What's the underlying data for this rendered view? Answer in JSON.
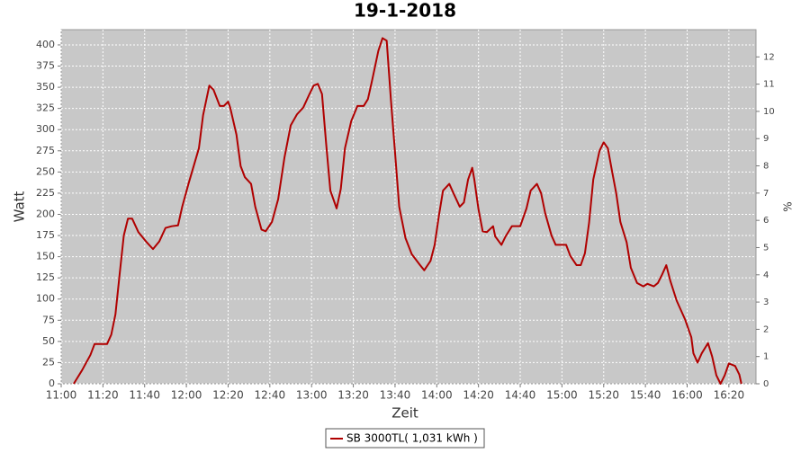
{
  "chart_data": {
    "type": "line",
    "title": "19-1-2018",
    "x_label": "Zeit",
    "y_label": "Watt",
    "y2_label": "%",
    "xlim": [
      "11:00",
      "16:33"
    ],
    "xticks": [
      "11:00",
      "11:20",
      "11:40",
      "12:00",
      "12:20",
      "12:40",
      "13:00",
      "13:20",
      "13:40",
      "14:00",
      "14:20",
      "14:40",
      "15:00",
      "15:20",
      "15:40",
      "16:00",
      "16:20"
    ],
    "ylim": [
      0,
      418
    ],
    "yticks": [
      0,
      25,
      50,
      75,
      100,
      125,
      150,
      175,
      200,
      225,
      250,
      275,
      300,
      325,
      350,
      375,
      400
    ],
    "y2lim": [
      0,
      13
    ],
    "y2ticks": [
      0,
      1,
      2,
      3,
      4,
      5,
      6,
      7,
      8,
      9,
      10,
      11,
      12
    ],
    "grid": true,
    "legend": "bottom",
    "x": [
      "11:06",
      "11:10",
      "11:14",
      "11:16",
      "11:19",
      "11:22",
      "11:24",
      "11:26",
      "11:28",
      "11:30",
      "11:32",
      "11:34",
      "11:37",
      "11:41",
      "11:44",
      "11:47",
      "11:50",
      "11:53",
      "11:56",
      "11:58",
      "12:01",
      "12:06",
      "12:08",
      "12:11",
      "12:13",
      "12:16",
      "12:18",
      "12:20",
      "12:21",
      "12:24",
      "12:26",
      "12:28",
      "12:31",
      "12:33",
      "12:36",
      "12:38",
      "12:41",
      "12:44",
      "12:47",
      "12:50",
      "12:53",
      "12:56",
      "12:59",
      "13:01",
      "13:03",
      "13:05",
      "13:07",
      "13:09",
      "13:12",
      "13:14",
      "13:16",
      "13:19",
      "13:22",
      "13:25",
      "13:27",
      "13:29",
      "13:32",
      "13:34",
      "13:36",
      "13:38",
      "13:40",
      "13:42",
      "13:45",
      "13:48",
      "13:52",
      "13:54",
      "13:57",
      "13:59",
      "14:01",
      "14:03",
      "14:06",
      "14:08",
      "14:11",
      "14:13",
      "14:15",
      "14:17",
      "14:18",
      "14:20",
      "14:22",
      "14:24",
      "14:27",
      "14:28",
      "14:31",
      "14:33",
      "14:36",
      "14:38",
      "14:40",
      "14:43",
      "14:45",
      "14:48",
      "14:50",
      "14:52",
      "14:55",
      "14:57",
      "14:59",
      "15:02",
      "15:04",
      "15:07",
      "15:09",
      "15:11",
      "15:13",
      "15:15",
      "15:18",
      "15:20",
      "15:22",
      "15:24",
      "15:26",
      "15:28",
      "15:31",
      "15:33",
      "15:36",
      "15:39",
      "15:41",
      "15:44",
      "15:46",
      "15:48",
      "15:50",
      "15:52",
      "15:55",
      "15:57",
      "15:59",
      "16:02",
      "16:03",
      "16:05",
      "16:07",
      "16:10",
      "16:12",
      "16:14",
      "16:16",
      "16:18",
      "16:20",
      "16:23",
      "16:25",
      "16:26"
    ],
    "series": [
      {
        "name": "SB 3000TL( 1,031 kWh )",
        "color": "#b00000",
        "values": [
          0,
          16,
          34,
          47,
          47,
          47,
          58,
          82,
          129,
          175,
          195,
          195,
          179,
          167,
          159,
          168,
          184,
          186,
          187,
          209,
          236,
          278,
          317,
          352,
          347,
          328,
          328,
          333,
          326,
          294,
          257,
          244,
          236,
          209,
          182,
          180,
          191,
          218,
          267,
          305,
          318,
          326,
          342,
          352,
          354,
          342,
          283,
          228,
          207,
          230,
          278,
          310,
          328,
          328,
          336,
          358,
          393,
          408,
          405,
          336,
          273,
          209,
          172,
          153,
          140,
          134,
          145,
          164,
          198,
          228,
          236,
          225,
          209,
          214,
          241,
          255,
          241,
          206,
          180,
          179,
          186,
          174,
          164,
          174,
          186,
          186,
          186,
          207,
          228,
          236,
          225,
          201,
          175,
          164,
          164,
          164,
          151,
          140,
          140,
          154,
          190,
          241,
          275,
          285,
          278,
          251,
          225,
          191,
          167,
          137,
          119,
          115,
          118,
          115,
          119,
          129,
          140,
          121,
          98,
          87,
          76,
          55,
          36,
          25,
          36,
          48,
          32,
          10,
          0,
          10,
          24,
          21,
          11,
          0
        ]
      }
    ]
  }
}
